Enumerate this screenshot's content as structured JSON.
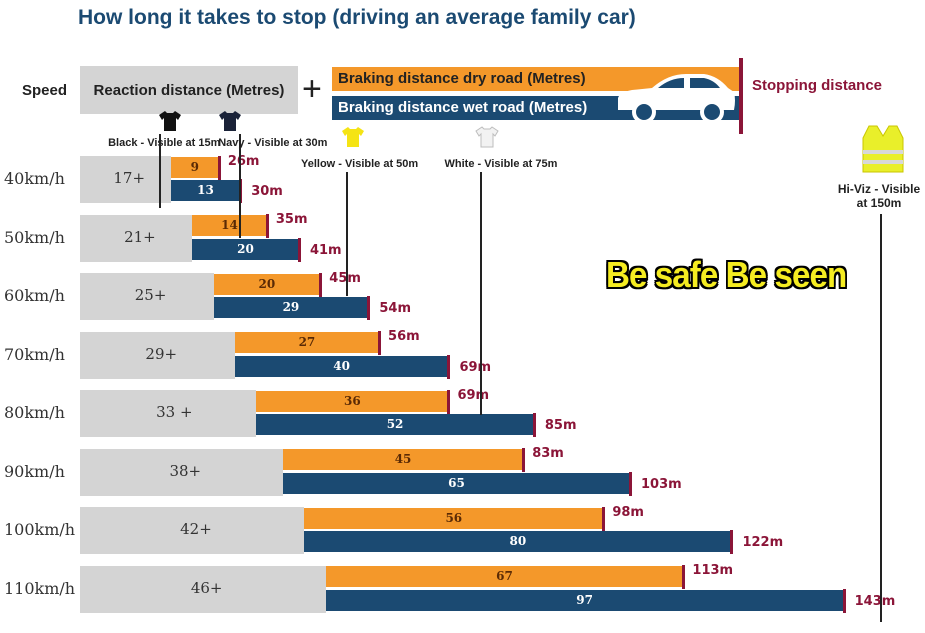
{
  "title": "How long it takes to stop (driving an average family car)",
  "headers": {
    "speed": "Speed",
    "reaction": "Reaction distance (Metres)",
    "plus": "+",
    "dry": "Braking distance dry road (Metres)",
    "wet": "Braking distance wet road (Metres)",
    "stopping": "Stopping distance"
  },
  "slogan": "Be safe Be seen",
  "colors": {
    "dry": "#f4982a",
    "wet": "#1b4a72",
    "reaction": "#d4d4d4",
    "stop": "#8b1538",
    "slogan": "#f5ec21"
  },
  "chart_data": {
    "type": "bar",
    "title": "How long it takes to stop (driving an average family car)",
    "categories": [
      "40km/h",
      "50km/h",
      "60km/h",
      "70km/h",
      "80km/h",
      "90km/h",
      "100km/h",
      "110km/h"
    ],
    "reaction_labels": [
      "17+",
      "21+",
      "25+",
      "29+",
      "33 +",
      "38+",
      "42+",
      "46+"
    ],
    "reaction": [
      17,
      21,
      25,
      29,
      33,
      38,
      42,
      46
    ],
    "series": [
      {
        "name": "Braking distance dry road (Metres)",
        "values": [
          9,
          14,
          20,
          27,
          36,
          45,
          56,
          67
        ],
        "stopping": [
          "26m",
          "35m",
          "45m",
          "56m",
          "69m",
          "83m",
          "98m",
          "113m"
        ]
      },
      {
        "name": "Braking distance wet road (Metres)",
        "values": [
          13,
          20,
          29,
          40,
          52,
          65,
          80,
          97
        ],
        "stopping": [
          "30m",
          "41m",
          "54m",
          "69m",
          "85m",
          "103m",
          "122m",
          "143m"
        ]
      }
    ],
    "visibility": [
      {
        "label": "Black - Visible at 15m",
        "distance": 15,
        "color": "#111111",
        "icon": "t-shirt-icon"
      },
      {
        "label": "Navy - Visible at 30m",
        "distance": 30,
        "color": "#1a2238",
        "icon": "t-shirt-icon"
      },
      {
        "label": "Yellow - Visible at 50m",
        "distance": 50,
        "color": "#f5e414",
        "icon": "t-shirt-icon"
      },
      {
        "label": "White - Visible at 75m",
        "distance": 75,
        "color": "#f2f2f2",
        "icon": "t-shirt-icon"
      },
      {
        "label": "Hi-Viz - Visible at 150m",
        "distance": 150,
        "color": "#e9ef2a",
        "icon": "hi-viz-vest-icon"
      }
    ]
  }
}
